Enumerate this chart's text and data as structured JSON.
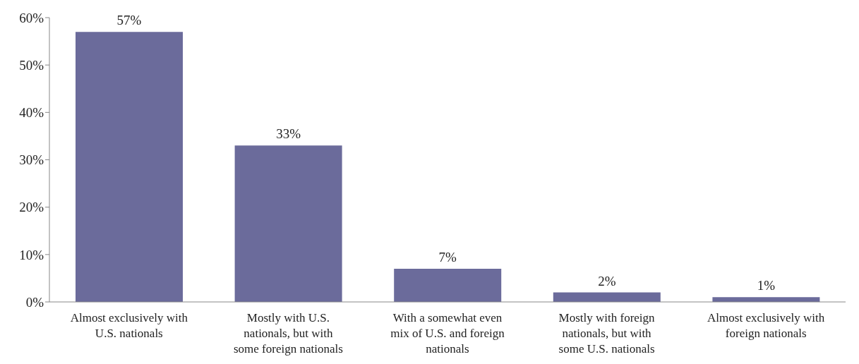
{
  "chart_data": {
    "type": "bar",
    "categories": [
      "Almost exclusively with U.S. nationals",
      "Mostly with U.S. nationals, but with some foreign nationals",
      "With a somewhat even mix of U.S. and foreign nationals",
      "Mostly with foreign nationals, but with some U.S. nationals",
      "Almost exclusively with foreign nationals"
    ],
    "values": [
      57,
      33,
      7,
      2,
      1
    ],
    "value_labels": [
      "57%",
      "33%",
      "7%",
      "2%",
      "1%"
    ],
    "color": "#6b6b9b",
    "ylim": [
      0,
      60
    ],
    "yticks": [
      {
        "value": 0,
        "label": "0%"
      },
      {
        "value": 10,
        "label": "10%"
      },
      {
        "value": 20,
        "label": "20%"
      },
      {
        "value": 30,
        "label": "30%"
      },
      {
        "value": 40,
        "label": "40%"
      },
      {
        "value": 50,
        "label": "50%"
      },
      {
        "value": 60,
        "label": "60%"
      }
    ],
    "grid": false,
    "legend": false
  }
}
